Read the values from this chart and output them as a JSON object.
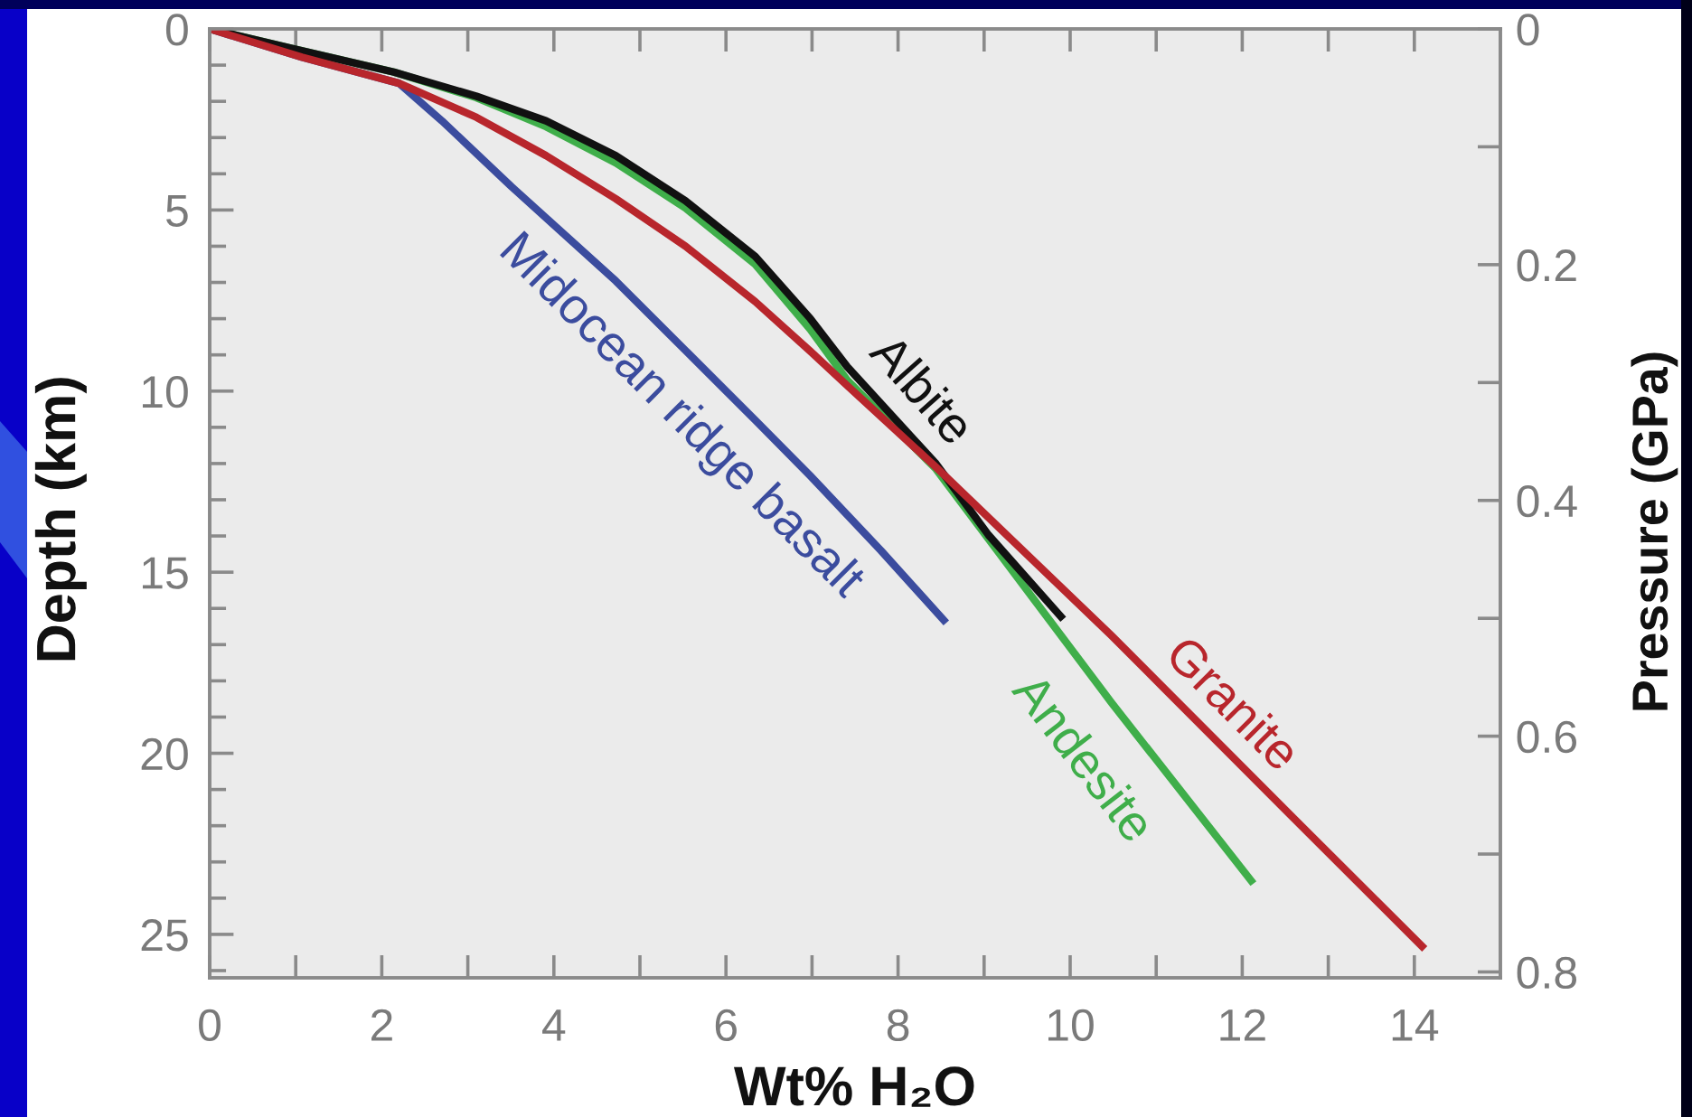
{
  "chart_data": {
    "type": "line",
    "xlabel": "Wt% H₂O",
    "ylabel": "Depth (km)",
    "y2label": "Pressure (GPa)",
    "xlim": [
      0,
      15
    ],
    "xticks": [
      0,
      {
        "value": 1,
        "label": null
      },
      2,
      {
        "value": 3,
        "label": null
      },
      4,
      {
        "value": 5,
        "label": null
      },
      6,
      {
        "value": 7,
        "label": null
      },
      8,
      {
        "value": 9,
        "label": null
      },
      10,
      {
        "value": 11,
        "label": null
      },
      12,
      {
        "value": 13,
        "label": null
      },
      14
    ],
    "ylim": [
      26.2,
      0
    ],
    "yticks": [
      0,
      {
        "value": 1,
        "label": null
      },
      {
        "value": 2,
        "label": null
      },
      {
        "value": 3,
        "label": null
      },
      {
        "value": 4,
        "label": null
      },
      5,
      {
        "value": 6,
        "label": null
      },
      {
        "value": 7,
        "label": null
      },
      {
        "value": 8,
        "label": null
      },
      {
        "value": 9,
        "label": null
      },
      10,
      {
        "value": 11,
        "label": null
      },
      {
        "value": 12,
        "label": null
      },
      {
        "value": 13,
        "label": null
      },
      {
        "value": 14,
        "label": null
      },
      15,
      {
        "value": 16,
        "label": null
      },
      {
        "value": 17,
        "label": null
      },
      {
        "value": 18,
        "label": null
      },
      {
        "value": 19,
        "label": null
      },
      20,
      {
        "value": 21,
        "label": null
      },
      {
        "value": 22,
        "label": null
      },
      {
        "value": 23,
        "label": null
      },
      {
        "value": 24,
        "label": null
      },
      25,
      {
        "value": 26,
        "label": null
      }
    ],
    "y2lim": [
      0.805,
      0
    ],
    "y2ticks": [
      0,
      {
        "value": 0.1,
        "label": null
      },
      0.2,
      {
        "value": 0.3,
        "label": null
      },
      0.4,
      {
        "value": 0.5,
        "label": null
      },
      0.6,
      {
        "value": 0.7,
        "label": null
      },
      0.8
    ],
    "line_style": "solid",
    "series": [
      {
        "name": "Midocean ridge basalt",
        "color": "#3b4c9e",
        "x": [
          0,
          1.07,
          2.2,
          2.7,
          3.51,
          4.72,
          5.53,
          6.34,
          6.98,
          7.8,
          8.56
        ],
        "values": [
          0,
          0.78,
          1.5,
          2.54,
          4.36,
          6.96,
          8.88,
          10.8,
          12.34,
          14.4,
          16.4
        ]
      },
      {
        "name": "Andesite",
        "color": "#3fae4a",
        "x": [
          0,
          0.92,
          2.14,
          3.1,
          3.91,
          4.72,
          5.53,
          6.34,
          6.98,
          7.41,
          8.44,
          10.48,
          12.13
        ],
        "values": [
          0,
          0.52,
          1.19,
          1.9,
          2.7,
          3.7,
          4.95,
          6.5,
          8.3,
          9.7,
          12.15,
          18.6,
          23.6
        ]
      },
      {
        "name": "Albite",
        "color": "#111111",
        "x": [
          0,
          0.92,
          2.14,
          3.1,
          3.91,
          4.72,
          5.53,
          6.34,
          6.98,
          7.41,
          8.44,
          9.05,
          9.92
        ],
        "values": [
          0,
          0.52,
          1.19,
          1.86,
          2.54,
          3.5,
          4.75,
          6.28,
          8.0,
          9.33,
          12.0,
          13.97,
          16.3
        ]
      },
      {
        "name": "Granite",
        "color": "#b8262c",
        "x": [
          0,
          1.07,
          2.2,
          3.1,
          3.91,
          4.72,
          5.53,
          6.34,
          6.98,
          7.41,
          8.44,
          10.48,
          12.6,
          14.12
        ],
        "values": [
          0,
          0.78,
          1.5,
          2.44,
          3.5,
          4.69,
          6.0,
          7.53,
          8.9,
          9.85,
          12.1,
          16.75,
          21.8,
          25.4
        ]
      }
    ]
  }
}
